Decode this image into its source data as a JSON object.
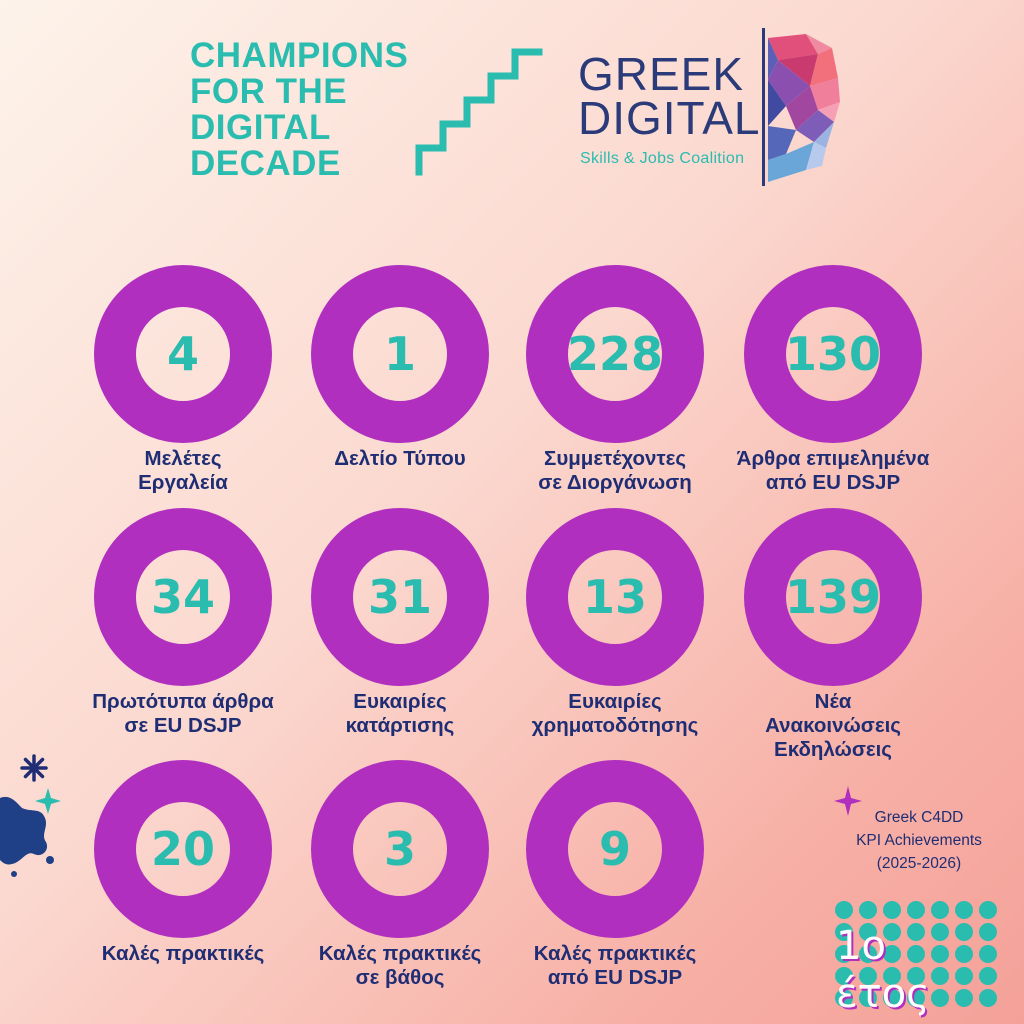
{
  "header": {
    "champions_lines": [
      "CHAMPIONS",
      "FOR THE",
      "DIGITAL",
      "DECADE"
    ],
    "logo_line1": "GREEK",
    "logo_line2": "DIGITAL",
    "logo_subtitle": "Skills & Jobs Coalition"
  },
  "kpis": [
    {
      "value": "4",
      "label_lines": [
        "Μελέτες",
        "Εργαλεία"
      ]
    },
    {
      "value": "1",
      "label_lines": [
        "Δελτίο Τύπου"
      ]
    },
    {
      "value": "228",
      "label_lines": [
        "Συμμετέχοντες",
        "σε Διοργάνωση"
      ]
    },
    {
      "value": "130",
      "label_lines": [
        "Άρθρα επιμελημένα",
        "από EU DSJP"
      ]
    },
    {
      "value": "34",
      "label_lines": [
        "Πρωτότυπα άρθρα",
        "σε EU DSJP"
      ]
    },
    {
      "value": "31",
      "label_lines": [
        "Ευκαιρίες",
        "κατάρτισης"
      ]
    },
    {
      "value": "13",
      "label_lines": [
        "Ευκαιρίες",
        "χρηματοδότησης"
      ]
    },
    {
      "value": "139",
      "label_lines": [
        "Νέα",
        "Ανακοινώσεις",
        "Εκδηλώσεις"
      ]
    },
    {
      "value": "20",
      "label_lines": [
        "Καλές πρακτικές"
      ]
    },
    {
      "value": "3",
      "label_lines": [
        "Καλές πρακτικές",
        "σε βάθος"
      ]
    },
    {
      "value": "9",
      "label_lines": [
        "Καλές πρακτικές",
        "από EU DSJP"
      ]
    }
  ],
  "footer": {
    "note_lines": [
      "Greek C4DD",
      "KPI Achievements",
      "(2025-2026)"
    ],
    "year_label": "1ο έτος"
  },
  "colors": {
    "ring": "#b12fbf",
    "value": "#2bbcb0",
    "label": "#1f2e74",
    "accent_teal": "#2bbcb0",
    "navy": "#2b3a78"
  },
  "icons": [
    "stairs-icon",
    "head-polygon-icon",
    "splash-icon",
    "sparkle-icon",
    "dots-pattern"
  ]
}
